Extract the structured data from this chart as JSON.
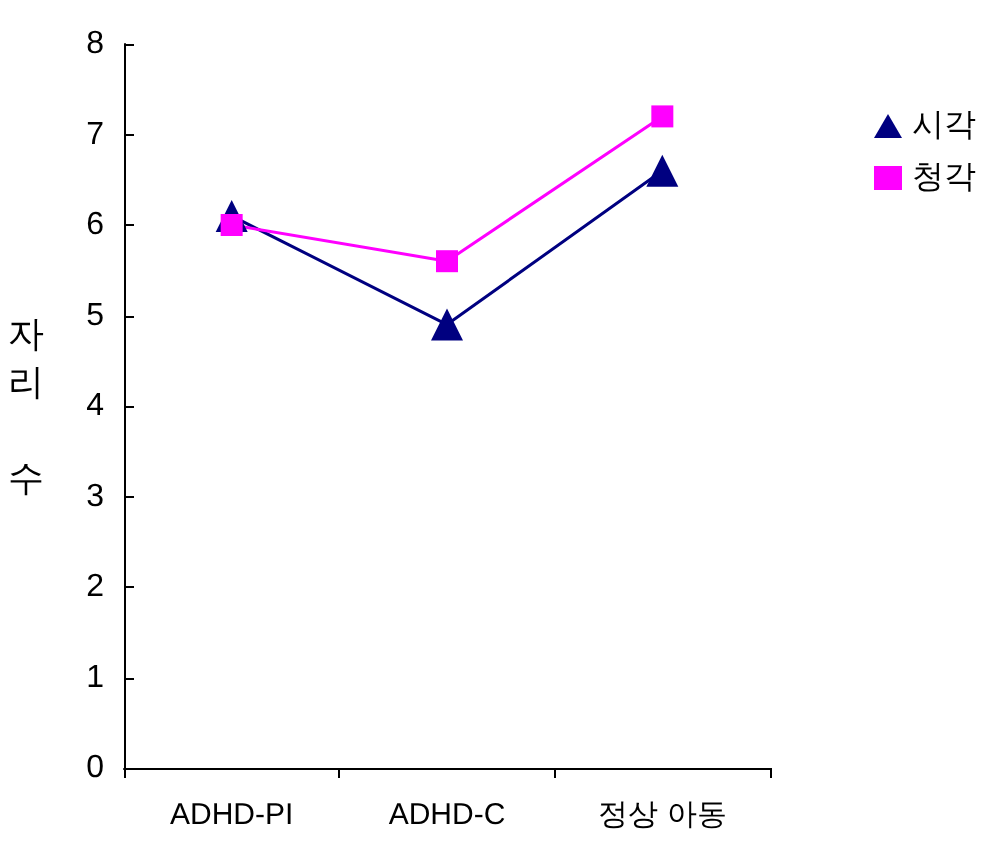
{
  "chart_data": {
    "type": "line",
    "ylabel": "자리 수",
    "categories": [
      "ADHD-PI",
      "ADHD-C",
      "정상 아동"
    ],
    "series": [
      {
        "name": "시각",
        "color": "#000080",
        "marker": "triangle",
        "values": [
          6.1,
          4.9,
          6.6
        ]
      },
      {
        "name": "청각",
        "color": "#ff00ff",
        "marker": "square",
        "values": [
          6.0,
          5.6,
          7.2
        ]
      }
    ],
    "ylim": [
      0,
      8
    ],
    "yticks": [
      0,
      1,
      2,
      3,
      4,
      5,
      6,
      7,
      8
    ],
    "grid": false,
    "legend": "top right",
    "line_style": "solid"
  }
}
